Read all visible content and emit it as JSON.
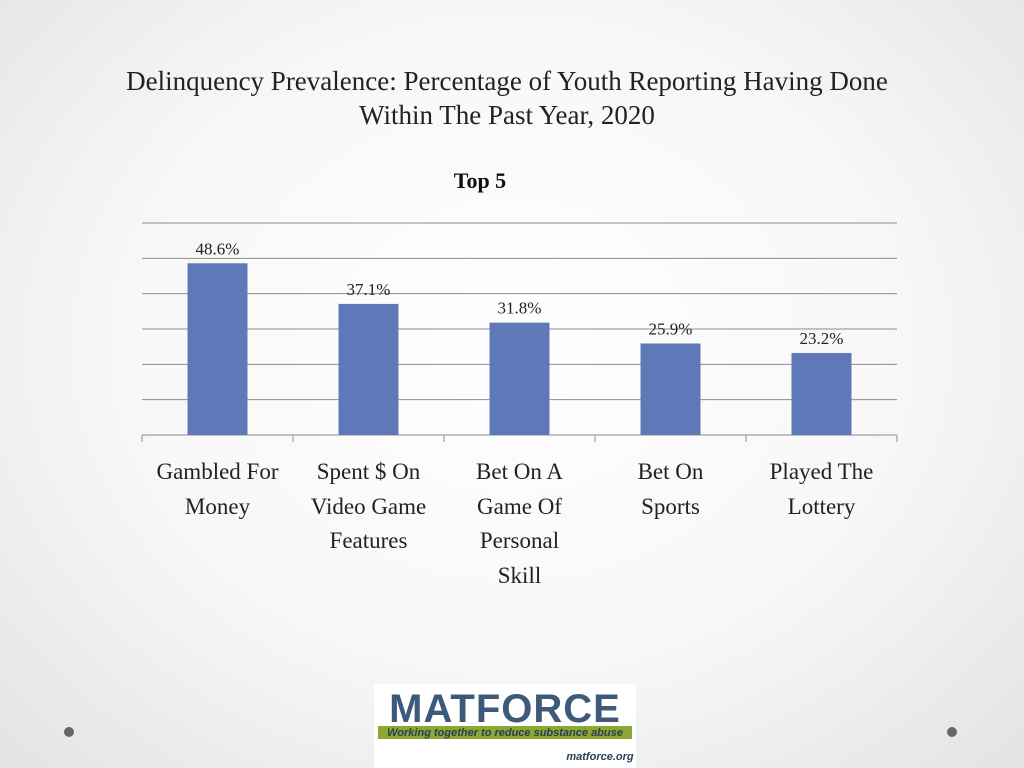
{
  "slide": {
    "title_line1": "Delinquency Prevalence: Percentage of Youth Reporting Having Done",
    "title_line2": "Within The Past Year, 2020"
  },
  "chart_data": {
    "type": "bar",
    "title": "Top 5",
    "categories": [
      "Gambled For Money",
      "Spent $ On Video Game Features",
      "Bet On A Game Of Personal Skill",
      "Bet On Sports",
      "Played The Lottery"
    ],
    "values": [
      48.6,
      37.1,
      31.8,
      25.9,
      23.2
    ],
    "data_labels": [
      "48.6%",
      "37.1%",
      "31.8%",
      "25.9%",
      "23.2%"
    ],
    "ylim": [
      0,
      60
    ],
    "y_grid_step": 10,
    "grid": true,
    "xlabel": "",
    "ylabel": "",
    "bar_color": "#5f78b8",
    "grid_color": "#8c8c8c"
  },
  "logo": {
    "name": "MATFORCE",
    "tagline": "Working together to reduce substance abuse",
    "url": "matforce.org",
    "color_dark": "#3d5a7a",
    "color_green": "#8aa832"
  }
}
